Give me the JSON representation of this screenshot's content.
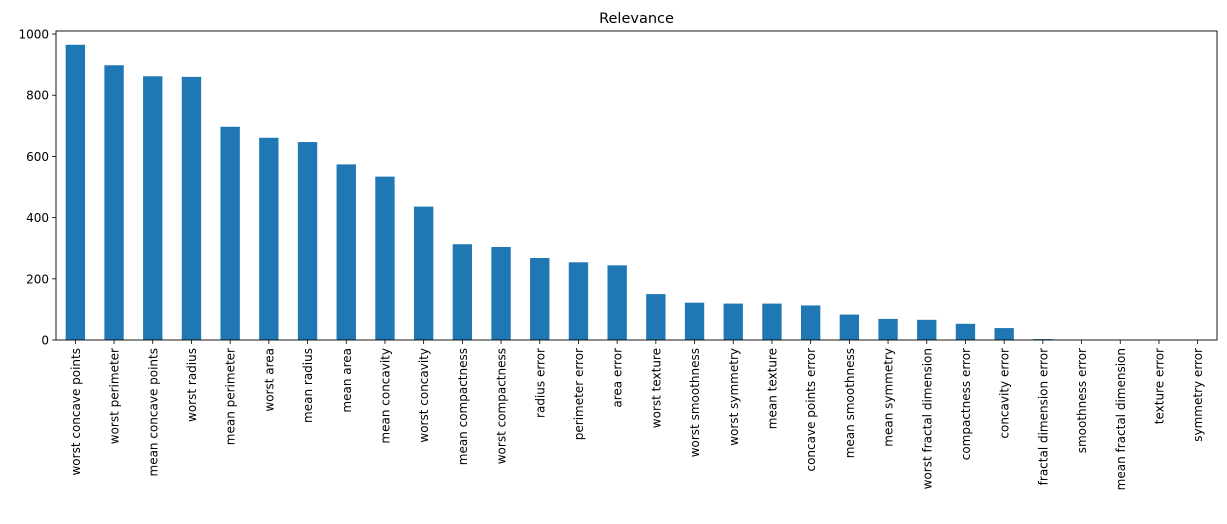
{
  "chart_data": {
    "type": "bar",
    "title": "Relevance",
    "xlabel": "",
    "ylabel": "",
    "ylim": [
      0,
      1010
    ],
    "yticks": [
      0,
      200,
      400,
      600,
      800,
      1000
    ],
    "bar_color": "#1f77b4",
    "grid": false,
    "legend": "none",
    "categories": [
      "worst concave points",
      "worst perimeter",
      "mean concave points",
      "worst radius",
      "mean perimeter",
      "worst area",
      "mean radius",
      "mean area",
      "mean concavity",
      "worst concavity",
      "mean compactness",
      "worst compactness",
      "radius error",
      "perimeter error",
      "area error",
      "worst texture",
      "worst smoothness",
      "worst symmetry",
      "mean texture",
      "concave points error",
      "mean smoothness",
      "mean symmetry",
      "worst fractal dimension",
      "compactness error",
      "concavity error",
      "fractal dimension error",
      "smoothness error",
      "mean fractal dimension",
      "texture error",
      "symmetry error"
    ],
    "values": [
      965,
      898,
      862,
      860,
      697,
      661,
      647,
      574,
      534,
      436,
      313,
      304,
      268,
      254,
      244,
      150,
      122,
      119,
      119,
      113,
      83,
      69,
      66,
      53,
      39,
      3,
      0.5,
      0.1,
      0.1,
      0.02
    ]
  }
}
